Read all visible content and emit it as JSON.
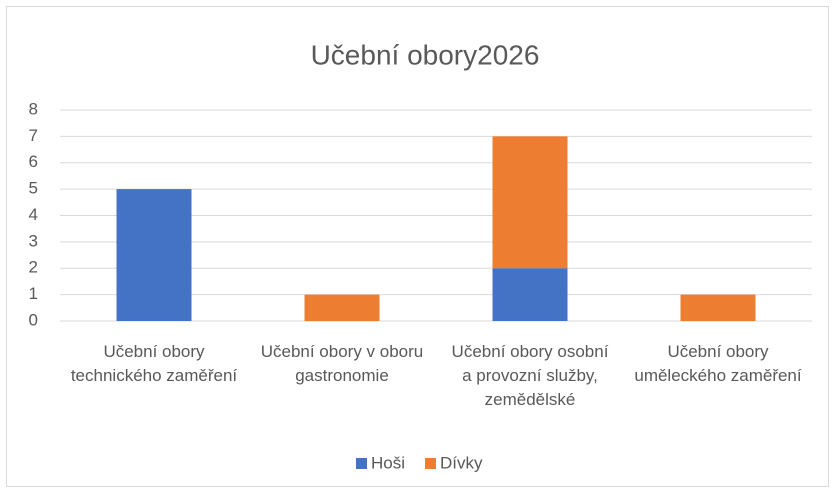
{
  "chart_data": {
    "type": "stacked_bar",
    "title": "Učební obory2026",
    "categories": [
      "Učební obory technického zaměření",
      "Učební obory v oboru gastronomie",
      "Učební obory osobní a provozní služby, zemědělské",
      "Učební obory uměleckého zaměření"
    ],
    "series": [
      {
        "name": "Hoši",
        "color": "#4472c4",
        "values": [
          5,
          0,
          2,
          0
        ]
      },
      {
        "name": "Dívky",
        "color": "#ed7d31",
        "values": [
          0,
          1,
          5,
          1
        ]
      }
    ],
    "ylim": [
      0,
      8
    ],
    "yticks": [
      0,
      1,
      2,
      3,
      4,
      5,
      6,
      7,
      8
    ],
    "grid": true,
    "legend": "bottom"
  }
}
